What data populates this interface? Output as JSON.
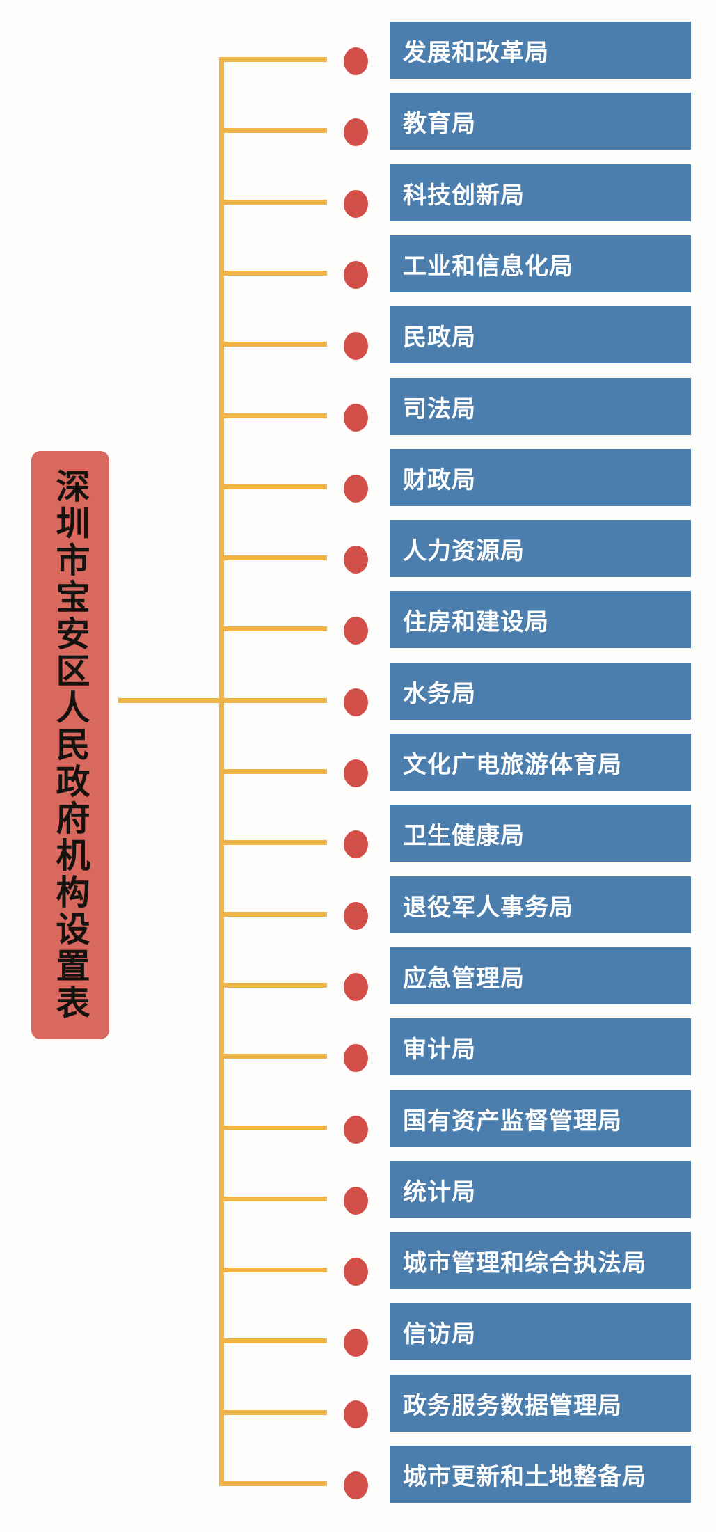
{
  "title": "深圳市宝安区人民政府机构设置表",
  "departments": [
    "发展和改革局",
    "教育局",
    "科技创新局",
    "工业和信息化局",
    "民政局",
    "司法局",
    "财政局",
    "人力资源局",
    "住房和建设局",
    "水务局",
    "文化广电旅游体育局",
    "卫生健康局",
    "退役军人事务局",
    "应急管理局",
    "审计局",
    "国有资产监督管理局",
    "统计局",
    "城市管理和综合执法局",
    "信访局",
    "政务服务数据管理局",
    "城市更新和土地整备局"
  ],
  "colors": {
    "box_blue": "#4b7ead",
    "dot_red": "#d14f48",
    "title_red": "#d9685f",
    "line_yellow": "#eeb546",
    "title_text": "#151310",
    "box_text": "#ffffff",
    "background": "#fdfdfc"
  }
}
